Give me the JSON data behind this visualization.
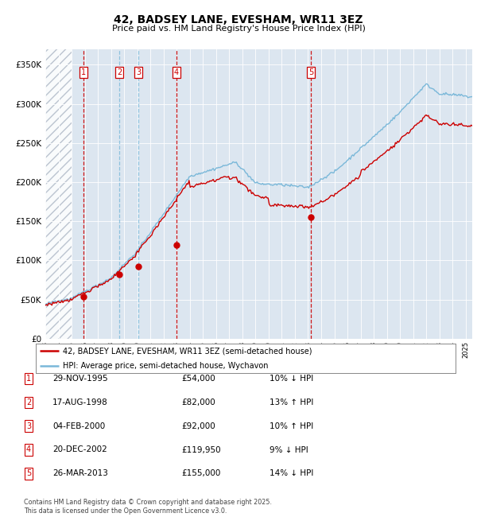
{
  "title": "42, BADSEY LANE, EVESHAM, WR11 3EZ",
  "subtitle": "Price paid vs. HM Land Registry's House Price Index (HPI)",
  "ylabel_ticks": [
    "£0",
    "£50K",
    "£100K",
    "£150K",
    "£200K",
    "£250K",
    "£300K",
    "£350K"
  ],
  "ytick_vals": [
    0,
    50000,
    100000,
    150000,
    200000,
    250000,
    300000,
    350000
  ],
  "ylim": [
    0,
    370000
  ],
  "xlim_start": 1993.0,
  "xlim_end": 2025.5,
  "hpi_color": "#7ab8d9",
  "price_color": "#cc0000",
  "sale_marker_color": "#cc0000",
  "vline_color_red": "#cc0000",
  "vline_color_blue": "#7ab8d9",
  "background_color": "#dce6f0",
  "sale_dates_x": [
    1995.91,
    1998.63,
    2000.09,
    2002.97,
    2013.23
  ],
  "sale_prices": [
    54000,
    82000,
    92000,
    119950,
    155000
  ],
  "sale_labels": [
    "1",
    "2",
    "3",
    "4",
    "5"
  ],
  "legend_line1": "42, BADSEY LANE, EVESHAM, WR11 3EZ (semi-detached house)",
  "legend_line2": "HPI: Average price, semi-detached house, Wychavon",
  "table_data": [
    [
      "1",
      "29-NOV-1995",
      "£54,000",
      "10% ↓ HPI"
    ],
    [
      "2",
      "17-AUG-1998",
      "£82,000",
      "13% ↑ HPI"
    ],
    [
      "3",
      "04-FEB-2000",
      "£92,000",
      "10% ↑ HPI"
    ],
    [
      "4",
      "20-DEC-2002",
      "£119,950",
      "9% ↓ HPI"
    ],
    [
      "5",
      "26-MAR-2013",
      "£155,000",
      "14% ↓ HPI"
    ]
  ],
  "footer_text": "Contains HM Land Registry data © Crown copyright and database right 2025.\nThis data is licensed under the Open Government Licence v3.0.",
  "hpi_vline_dates": [
    1998.63,
    2000.09
  ],
  "red_vline_dates": [
    1995.91,
    2002.97,
    2013.23
  ]
}
